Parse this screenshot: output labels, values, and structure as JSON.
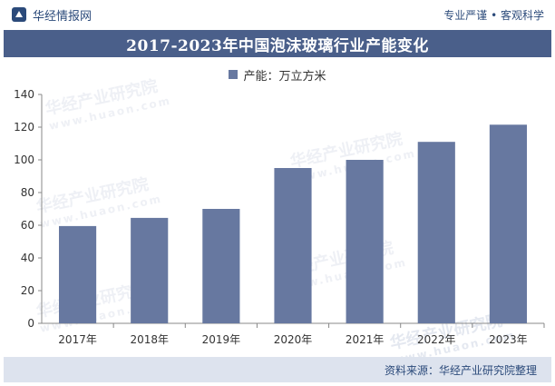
{
  "header": {
    "brand": "华经情报网",
    "slogan": "专业严谨 • 客观科学"
  },
  "colors": {
    "bar": "#6778a0",
    "title_band": "#4a5f8a",
    "source_band": "#dde3ee",
    "brand_text": "#2b4a7a"
  },
  "chart_data": {
    "type": "bar",
    "title": "2017-2023年中国泡沫玻璃行业产能变化",
    "categories": [
      "2017年",
      "2018年",
      "2019年",
      "2020年",
      "2021年",
      "2022年",
      "2023年"
    ],
    "series": [
      {
        "name": "产能：万立方米",
        "values": [
          59.5,
          64.5,
          70,
          95,
          100,
          111,
          121.5
        ]
      }
    ],
    "ylim": [
      0,
      140
    ],
    "yticks": [
      0,
      20,
      40,
      60,
      80,
      100,
      120,
      140
    ],
    "grid": false,
    "legend": "top-center"
  },
  "footer": {
    "source": "资料来源：华经产业研究院整理"
  },
  "watermarks": {
    "brand": "华经产业研究院",
    "url": "www.huaon.com"
  }
}
